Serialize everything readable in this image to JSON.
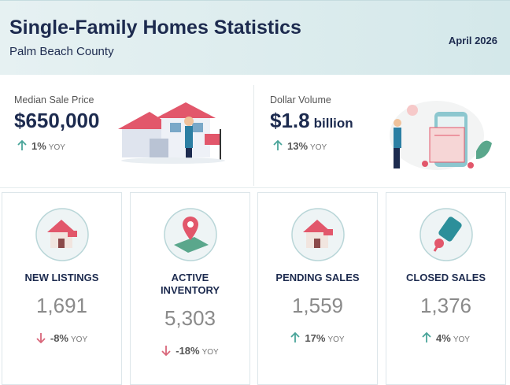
{
  "header": {
    "title": "Single-Family Homes Statistics",
    "subtitle": "Palm Beach County",
    "date": "April 2026"
  },
  "featured": [
    {
      "label": "Median Sale Price",
      "value": "$650,000",
      "change": "1%",
      "change_label": "YOY"
    },
    {
      "label": "Dollar Volume",
      "value": "$1.8",
      "unit": "billion",
      "change": "13%",
      "change_label": "YOY"
    }
  ],
  "stats": [
    {
      "label": "NEW LISTINGS",
      "value": "1,691",
      "change": "-8%",
      "change_label": "YOY"
    },
    {
      "label": "ACTIVE INVENTORY",
      "value": "5,303",
      "change": "-18%",
      "change_label": "YOY"
    },
    {
      "label": "PENDING SALES",
      "value": "1,559",
      "change": "17%",
      "change_label": "YOY"
    },
    {
      "label": "CLOSED SALES",
      "value": "1,376",
      "change": "4%",
      "change_label": "YOY"
    }
  ]
}
